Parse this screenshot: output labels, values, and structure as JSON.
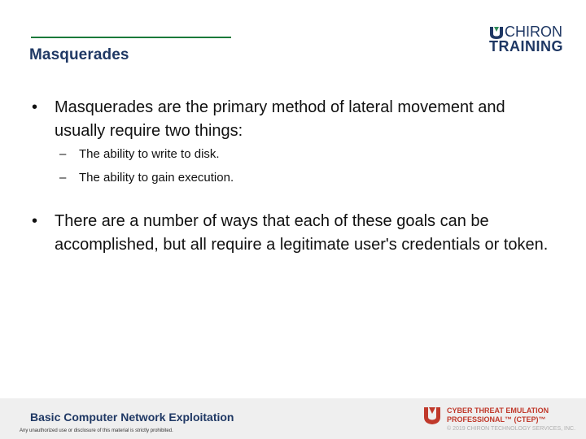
{
  "header": {
    "title": "Masquerades",
    "logo": {
      "line1": "CHIRON",
      "line2": "TRAINING"
    }
  },
  "content": {
    "bullets": [
      {
        "text": "Masquerades are the primary method of lateral movement and usually require two things:",
        "subitems": [
          "The ability to write to disk.",
          "The ability to gain execution."
        ]
      },
      {
        "text": "There are a number of ways that each of these goals can be accomplished, but all require a legitimate user's credentials or token.",
        "subitems": []
      }
    ],
    "bullet_symbol": "•",
    "sub_symbol": "–"
  },
  "footer": {
    "course": "Basic Computer Network Exploitation",
    "disclaimer": "Any unauthorized use or disclosure of this material is strictly prohibited.",
    "badge_line1": "CYBER THREAT EMULATION",
    "badge_line2": "PROFESSIONAL™ (CTEP)™",
    "copyright": "© 2019 CHIRON TECHNOLOGY SERVICES, INC."
  },
  "colors": {
    "title": "#1f3864",
    "rule": "#1b7a3a",
    "badge": "#c0392b"
  }
}
